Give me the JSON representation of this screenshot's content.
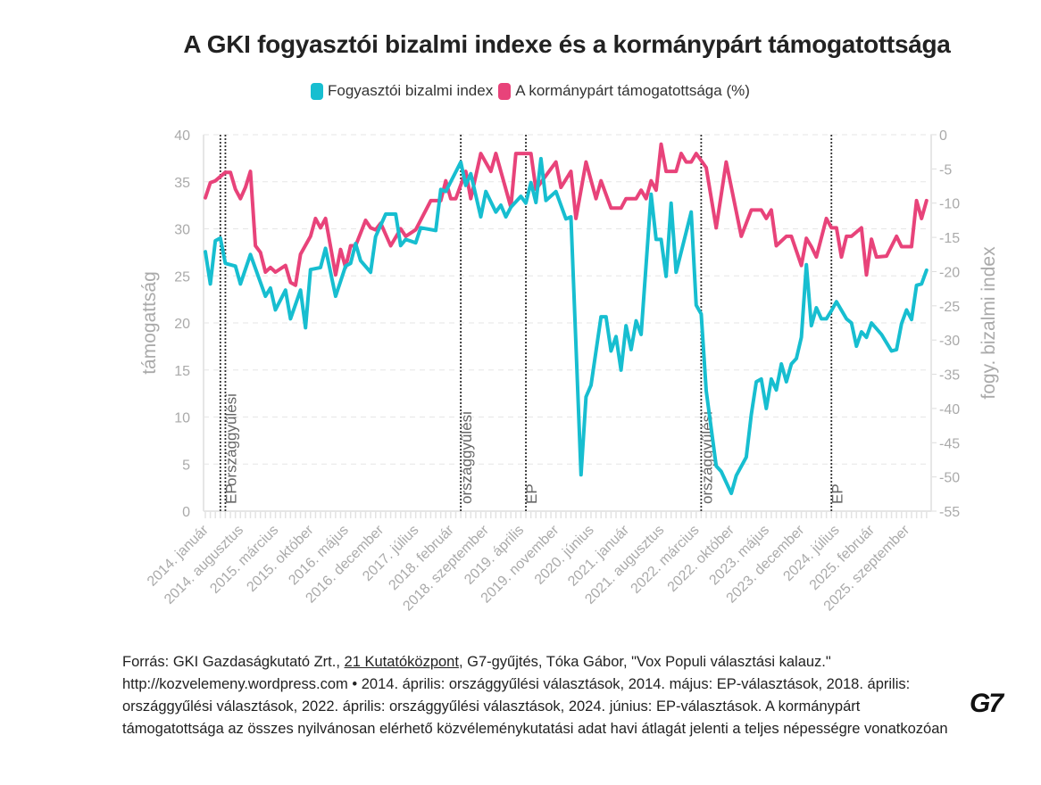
{
  "title": "A GKI fogyasztói bizalmi indexe és a kormánypárt támogatottsága",
  "legend": [
    {
      "label": "Fogyasztói bizalmi index",
      "color": "#17bed0"
    },
    {
      "label": "A kormánypárt támogatottsága (%)",
      "color": "#e8437a"
    }
  ],
  "footnote": {
    "prefix": "Forrás: GKI Gazdaságkutató Zrt., ",
    "link": "21 Kutatóközpont",
    "rest": ", G7-gyűjtés, Tóka Gábor, \"Vox Populi választási kalauz.\" http://kozvelemeny.wordpress.com • 2014. április: országgyűlési választások, 2014. május: EP-választások, 2018. április: országgyűlési választások, 2022. április: országgyűlési választások, 2024. június: EP-választások. A kormánypárt támogatottsága az összes nyilvánosan elérhető közvéleménykutatási adat havi átlagát jelenti a teljes népességre vonatkozóan"
  },
  "logo": "G7",
  "chart_data": {
    "type": "line",
    "title": "A GKI fogyasztói bizalmi indexe és a kormánypárt támogatottsága",
    "x_unit": "months since 2014. január (0 = 2014. január)",
    "xlim": [
      0,
      144
    ],
    "x_ticks": [
      0,
      7,
      14,
      21,
      28,
      35,
      42,
      49,
      56,
      63,
      70,
      77,
      84,
      91,
      98,
      105,
      112,
      119,
      126,
      133,
      140
    ],
    "x_tick_labels": [
      "2014. január",
      "2014. augusztus",
      "2015. március",
      "2015. október",
      "2016. május",
      "2016. december",
      "2017. július",
      "2018. február",
      "2018. szeptember",
      "2019. április",
      "2019. november",
      "2020. június",
      "2021. január",
      "2021. augusztus",
      "2022. március",
      "2022. október",
      "2023. május",
      "2023. december",
      "2024. július",
      "2025. február",
      "2025. szeptember"
    ],
    "ylabel_left": "támogattság",
    "ylabel_right": "fogy. bizalmi index",
    "ylim_left": [
      0,
      40
    ],
    "yticks_left": [
      0,
      5,
      10,
      15,
      20,
      25,
      30,
      35,
      40
    ],
    "ylim_right": [
      -55,
      0
    ],
    "yticks_right": [
      0,
      -5,
      -10,
      -15,
      -20,
      -25,
      -30,
      -35,
      -40,
      -45,
      -50,
      -55
    ],
    "grid": true,
    "legend_position": "top-center",
    "events": [
      {
        "x": 3,
        "label": "országgyűlési"
      },
      {
        "x": 4,
        "label": "EP"
      },
      {
        "x": 51,
        "label": "országgyűlési"
      },
      {
        "x": 64,
        "label": "EP"
      },
      {
        "x": 99,
        "label": "országgyűlési"
      },
      {
        "x": 125,
        "label": "EP"
      }
    ],
    "series": [
      {
        "name": "A kormánypárt támogatottsága (%)",
        "axis": "left",
        "color": "#e8437a",
        "x": [
          0,
          1,
          2,
          4,
          5,
          6,
          7,
          8,
          9,
          10,
          11,
          12,
          13,
          14,
          16,
          17,
          18,
          19,
          21,
          22,
          23,
          24,
          26,
          27,
          28,
          29,
          30,
          32,
          33,
          34,
          35,
          37,
          39,
          40,
          42,
          45,
          47,
          48,
          49,
          50,
          52,
          53,
          55,
          57,
          58,
          61,
          62,
          65,
          66,
          70,
          71,
          73,
          74,
          76,
          78,
          79,
          81,
          83,
          84,
          86,
          87,
          88,
          89,
          90,
          91,
          92,
          94,
          95,
          96,
          97,
          98,
          100,
          102,
          104,
          107,
          109,
          111,
          112,
          113,
          114,
          116,
          117,
          119,
          120,
          121,
          122,
          124,
          125,
          126,
          127,
          128,
          129,
          131,
          132,
          133,
          134,
          136,
          138,
          139,
          141,
          142,
          143,
          144
        ],
        "values": [
          33.3,
          34.9,
          35.1,
          36.0,
          36.0,
          34.2,
          33.2,
          34.4,
          36.1,
          28.2,
          27.5,
          25.4,
          25.9,
          25.4,
          26.1,
          24.3,
          24.0,
          27.3,
          29.2,
          31.1,
          30.1,
          31.1,
          25.1,
          27.8,
          25.9,
          28.2,
          28.2,
          30.9,
          30.1,
          29.9,
          30.6,
          28.2,
          30.0,
          29.2,
          29.9,
          33.0,
          33.0,
          35.1,
          33.2,
          33.2,
          36.1,
          33.2,
          38.0,
          36.1,
          38.0,
          32.3,
          38.0,
          38.0,
          34.2,
          37.1,
          34.4,
          36.1,
          31.1,
          37.1,
          33.2,
          35.1,
          32.2,
          32.2,
          33.2,
          33.2,
          34.1,
          33.2,
          35.1,
          34.1,
          39.0,
          36.1,
          36.1,
          38.0,
          37.1,
          37.1,
          38.0,
          36.5,
          30.1,
          37.1,
          29.2,
          32.0,
          32.0,
          31.1,
          32.0,
          28.2,
          29.2,
          29.2,
          26.1,
          29.0,
          28.1,
          27.0,
          31.1,
          30.1,
          30.1,
          27.0,
          29.2,
          29.2,
          30.1,
          25.1,
          28.9,
          27.0,
          27.1,
          29.2,
          28.1,
          28.1,
          33.0,
          31.1,
          33.0
        ]
      },
      {
        "name": "Fogyasztói bizalmi index",
        "axis": "right",
        "color": "#17bed0",
        "x": [
          0,
          1,
          2,
          3,
          4,
          6,
          7,
          9,
          12,
          13,
          14,
          16,
          17,
          19,
          20,
          21,
          23,
          24,
          26,
          28,
          29,
          30,
          31,
          33,
          34,
          36,
          38,
          39,
          40,
          42,
          43,
          46,
          47,
          48,
          51,
          52,
          53,
          55,
          56,
          58,
          59,
          60,
          61,
          63,
          64,
          65,
          66,
          67,
          68,
          70,
          72,
          73,
          75,
          76,
          77,
          79,
          80,
          81,
          82,
          83,
          84,
          85,
          86,
          87,
          89,
          90,
          91,
          92,
          93,
          94,
          97,
          98,
          99,
          100,
          102,
          103,
          105,
          106,
          108,
          109,
          110,
          111,
          112,
          113,
          114,
          115,
          116,
          117,
          118,
          119,
          120,
          121,
          122,
          123,
          124,
          125,
          126,
          128,
          129,
          130,
          131,
          132,
          133,
          135,
          137,
          138,
          139,
          140,
          141,
          142,
          143,
          144
        ],
        "values": [
          -17.1,
          -21.8,
          -15.5,
          -15.1,
          -18.8,
          -19.2,
          -21.8,
          -17.5,
          -23.6,
          -22.4,
          -25.6,
          -22.7,
          -26.9,
          -22.7,
          -28.2,
          -19.7,
          -19.4,
          -16.6,
          -23.6,
          -19.2,
          -18.8,
          -15.9,
          -18.4,
          -20.1,
          -14.9,
          -11.6,
          -11.6,
          -16.2,
          -15.3,
          -15.8,
          -13.6,
          -14.0,
          -8.0,
          -8.3,
          -4.0,
          -7.4,
          -5.7,
          -12.0,
          -8.3,
          -11.3,
          -10.3,
          -12.0,
          -10.6,
          -9.0,
          -10.0,
          -7.0,
          -9.9,
          -3.5,
          -9.6,
          -8.3,
          -12.3,
          -12.0,
          -49.7,
          -38.3,
          -36.6,
          -26.6,
          -26.6,
          -31.6,
          -29.5,
          -34.4,
          -27.9,
          -31.4,
          -27.2,
          -29.2,
          -8.7,
          -15.3,
          -15.3,
          -20.7,
          -10.0,
          -20.1,
          -11.3,
          -24.9,
          -26.2,
          -37.4,
          -48.4,
          -49.2,
          -52.4,
          -49.8,
          -47.1,
          -40.9,
          -36.1,
          -35.7,
          -40.0,
          -35.7,
          -37.3,
          -33.5,
          -36.1,
          -33.5,
          -32.7,
          -29.6,
          -19.0,
          -27.9,
          -25.3,
          -26.9,
          -26.9,
          -25.7,
          -24.4,
          -26.9,
          -27.5,
          -30.9,
          -28.8,
          -29.6,
          -27.5,
          -29.2,
          -31.6,
          -31.4,
          -27.6,
          -25.6,
          -27.0,
          -22.0,
          -21.8,
          -19.8
        ]
      }
    ]
  }
}
